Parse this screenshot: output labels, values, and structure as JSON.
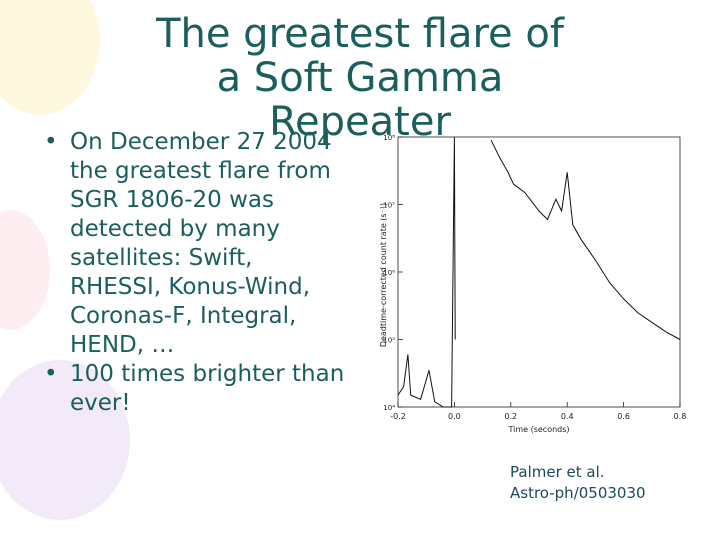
{
  "slide": {
    "title": "The greatest flare of a Soft Gamma Repeater",
    "bullets": [
      "On December 27 2004 the greatest flare from SGR 1806-20 was detected by many satellites: Swift, RHESSI, Konus-Wind, Coronas-F, Integral, HEND, …",
      "100 times brighter than ever!"
    ],
    "caption": [
      "Palmer et al.",
      "Astro-ph/0503030"
    ]
  },
  "chart_data": {
    "type": "line",
    "x_label": "Time (seconds)",
    "y_label": "Deadtime-corrected count rate (s⁻¹)",
    "x": [
      -0.2,
      -0.18,
      -0.165,
      -0.155,
      -0.12,
      -0.1,
      -0.09,
      -0.07,
      -0.04,
      -0.01,
      0.0,
      0.003,
      0.05,
      0.13,
      0.16,
      0.19,
      0.21,
      0.25,
      0.3,
      0.33,
      0.36,
      0.38,
      0.4,
      0.42,
      0.45,
      0.5,
      0.55,
      0.6,
      0.65,
      0.7,
      0.75,
      0.8
    ],
    "series": [
      {
        "color": "#111111",
        "values": [
          15000,
          20000,
          60000,
          15000,
          13000,
          25000,
          35000,
          12000,
          10000,
          10000,
          100000000,
          100000,
          null,
          90000000,
          50000000,
          30000000,
          20000000,
          15000000,
          8000000,
          6000000,
          12000000,
          8000000,
          30000000,
          5000000,
          3000000,
          1500000,
          700000,
          400000,
          250000,
          180000,
          130000,
          100000
        ]
      }
    ],
    "log_y": true,
    "xlim": [
      -0.2,
      0.8
    ],
    "ylim": [
      10000,
      100000000
    ],
    "xticks": [
      -0.2,
      {
        "value": 0,
        "label": "0.0"
      },
      0.2,
      0.4,
      0.6,
      0.8
    ],
    "yticks": [
      {
        "value": 10000,
        "label": "10⁴"
      },
      {
        "value": 100000,
        "label": "10⁵"
      },
      {
        "value": 1000000,
        "label": "10⁶"
      },
      {
        "value": 10000000,
        "label": "10⁷"
      },
      {
        "value": 100000000,
        "label": "10⁸"
      }
    ]
  }
}
